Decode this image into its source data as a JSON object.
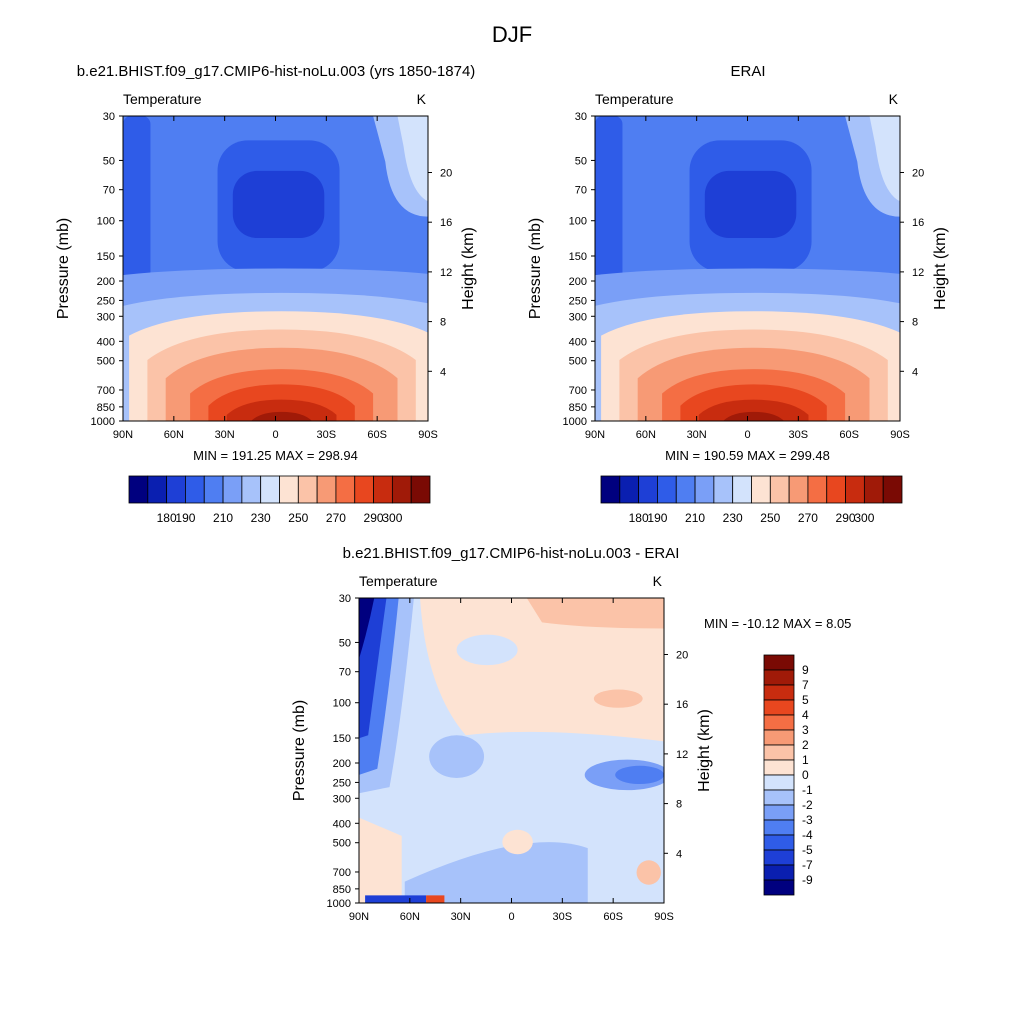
{
  "figure": {
    "title": "DJF"
  },
  "colors": {
    "cool": [
      "#00007f",
      "#0a1fb0",
      "#1e3fd6",
      "#2f5ce8",
      "#4f7ef2",
      "#7a9ff7",
      "#a7c2fa",
      "#d3e3fc"
    ],
    "warm": [
      "#fde3d3",
      "#fbc3a8",
      "#f79a75",
      "#f46e44",
      "#e8471f",
      "#c82c0f",
      "#a01a08",
      "#7a0a04"
    ],
    "diff_cool": [
      "#d3e3fc",
      "#a7c2fa",
      "#7a9ff7",
      "#4f7ef2",
      "#2f5ce8",
      "#1e3fd6",
      "#0a1fb0",
      "#00007f"
    ],
    "diff_warm": [
      "#fde3d3",
      "#fbc3a8",
      "#f79a75",
      "#f46e44",
      "#e8471f",
      "#c82c0f",
      "#a01a08",
      "#7a0a04"
    ]
  },
  "chart_data": [
    {
      "type": "heatmap",
      "title": "b.e21.BHIST.f09_g17.CMIP6-hist-noLu.003 (yrs 1850-1874)",
      "left_string": "Temperature",
      "right_string": "K",
      "ylabel": "Pressure (mb)",
      "ylabel_right": "Height (km)",
      "x_tick_labels": [
        "90N",
        "60N",
        "30N",
        "0",
        "30S",
        "60S",
        "90S"
      ],
      "y_tick_labels": [
        "30",
        "50",
        "70",
        "100",
        "150",
        "200",
        "250",
        "300",
        "400",
        "500",
        "700",
        "850",
        "1000"
      ],
      "y_right_tick_labels": [
        "20",
        "16",
        "12",
        "8",
        "4"
      ],
      "min": 191.25,
      "max": 298.94,
      "min_max_text": "MIN = 191.25  MAX = 298.94",
      "colorbar": {
        "orientation": "horizontal",
        "levels": [
          180,
          190,
          200,
          210,
          220,
          230,
          240,
          250,
          260,
          270,
          280,
          290,
          300
        ],
        "tick_labels": [
          "180",
          "190",
          "210",
          "230",
          "250",
          "270",
          "290",
          "300"
        ]
      }
    },
    {
      "type": "heatmap",
      "title": "ERAI",
      "left_string": "Temperature",
      "right_string": "K",
      "ylabel": "Pressure (mb)",
      "ylabel_right": "Height (km)",
      "x_tick_labels": [
        "90N",
        "60N",
        "30N",
        "0",
        "30S",
        "60S",
        "90S"
      ],
      "y_tick_labels": [
        "30",
        "50",
        "70",
        "100",
        "150",
        "200",
        "250",
        "300",
        "400",
        "500",
        "700",
        "850",
        "1000"
      ],
      "y_right_tick_labels": [
        "20",
        "16",
        "12",
        "8",
        "4"
      ],
      "min": 190.59,
      "max": 299.48,
      "min_max_text": "MIN = 190.59  MAX = 299.48",
      "colorbar": {
        "orientation": "horizontal",
        "levels": [
          180,
          190,
          200,
          210,
          220,
          230,
          240,
          250,
          260,
          270,
          280,
          290,
          300
        ],
        "tick_labels": [
          "180",
          "190",
          "210",
          "230",
          "250",
          "270",
          "290",
          "300"
        ]
      }
    },
    {
      "type": "heatmap",
      "title": "b.e21.BHIST.f09_g17.CMIP6-hist-noLu.003 - ERAI",
      "left_string": "Temperature",
      "right_string": "K",
      "ylabel": "Pressure (mb)",
      "ylabel_right": "Height (km)",
      "x_tick_labels": [
        "90N",
        "60N",
        "30N",
        "0",
        "30S",
        "60S",
        "90S"
      ],
      "y_tick_labels": [
        "30",
        "50",
        "70",
        "100",
        "150",
        "200",
        "250",
        "300",
        "400",
        "500",
        "700",
        "850",
        "1000"
      ],
      "y_right_tick_labels": [
        "20",
        "16",
        "12",
        "8",
        "4"
      ],
      "min": -10.12,
      "max": 8.05,
      "min_max_text": "MIN = -10.12  MAX =   8.05",
      "colorbar": {
        "orientation": "vertical",
        "levels": [
          9,
          7,
          5,
          4,
          3,
          2,
          1,
          0,
          -1,
          -2,
          -3,
          -4,
          -5,
          -7,
          -9
        ],
        "tick_labels": [
          "9",
          "7",
          "5",
          "4",
          "3",
          "2",
          "1",
          "0",
          "-1",
          "-2",
          "-3",
          "-4",
          "-5",
          "-7",
          "-9"
        ]
      }
    }
  ]
}
